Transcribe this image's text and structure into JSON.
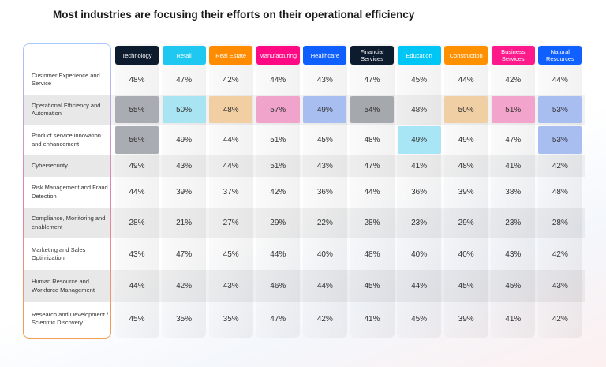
{
  "title": "Most industries are focusing their efforts on their operational efficiency",
  "chart_data": {
    "type": "table",
    "title": "Most industries are focusing their efforts on their operational efficiency",
    "columns": [
      {
        "label": "Technology",
        "color": "#0d1b2e",
        "highlight": "#a9adb3"
      },
      {
        "label": "Retail",
        "color": "#1ec8f0",
        "highlight": "#a9e4f2"
      },
      {
        "label": "Real Estate",
        "color": "#ff8c00",
        "highlight": "#f2cfa3"
      },
      {
        "label": "Manufacturing",
        "color": "#ff0a84",
        "highlight": "#f0a4cc"
      },
      {
        "label": "Healthcare",
        "color": "#0f5fff",
        "highlight": "#a8bdf0"
      },
      {
        "label": "Financial Services",
        "color": "#0d1b2e",
        "highlight": "#a5a8ad"
      },
      {
        "label": "Education",
        "color": "#00c6f5",
        "highlight": "#a9e6f5"
      },
      {
        "label": "Construction",
        "color": "#ff9100",
        "highlight": "#f0cfa5"
      },
      {
        "label": "Business Services",
        "color": "#ff1a8c",
        "highlight": "#f2a4cc"
      },
      {
        "label": "Natural Resources",
        "color": "#1060ff",
        "highlight": "#a8bdf0"
      }
    ],
    "rows": [
      {
        "label": "Customer Experience and Service",
        "values": [
          "48%",
          "47%",
          "42%",
          "44%",
          "43%",
          "47%",
          "45%",
          "44%",
          "42%",
          "44%"
        ],
        "highlighted": []
      },
      {
        "label": "Operational Efficiency and Automation",
        "values": [
          "55%",
          "50%",
          "48%",
          "57%",
          "49%",
          "54%",
          "48%",
          "50%",
          "51%",
          "53%"
        ],
        "highlighted": [
          0,
          1,
          2,
          3,
          4,
          5,
          7,
          8,
          9
        ]
      },
      {
        "label": "Product service innovation and enhancement",
        "values": [
          "56%",
          "49%",
          "44%",
          "51%",
          "45%",
          "48%",
          "49%",
          "49%",
          "47%",
          "53%"
        ],
        "highlighted": [
          0,
          6,
          9
        ]
      },
      {
        "label": "Cybersecurity",
        "values": [
          "49%",
          "43%",
          "44%",
          "51%",
          "43%",
          "47%",
          "41%",
          "48%",
          "41%",
          "42%"
        ],
        "highlighted": []
      },
      {
        "label": "Risk Management and Fraud Detection",
        "values": [
          "44%",
          "39%",
          "37%",
          "42%",
          "36%",
          "44%",
          "36%",
          "39%",
          "38%",
          "48%"
        ],
        "highlighted": []
      },
      {
        "label": "Compliance, Monitoring and enablement",
        "values": [
          "28%",
          "21%",
          "27%",
          "29%",
          "22%",
          "28%",
          "23%",
          "29%",
          "23%",
          "28%"
        ],
        "highlighted": []
      },
      {
        "label": "Marketing and Sales Optimization",
        "values": [
          "43%",
          "47%",
          "45%",
          "44%",
          "40%",
          "48%",
          "40%",
          "40%",
          "43%",
          "42%"
        ],
        "highlighted": []
      },
      {
        "label": "Human Resource and Workforce Management",
        "values": [
          "44%",
          "42%",
          "43%",
          "46%",
          "44%",
          "45%",
          "44%",
          "45%",
          "45%",
          "43%"
        ],
        "highlighted": []
      },
      {
        "label": "Research and Development / Scientific Discovery",
        "values": [
          "45%",
          "35%",
          "35%",
          "47%",
          "42%",
          "41%",
          "45%",
          "39%",
          "41%",
          "42%"
        ],
        "highlighted": []
      }
    ]
  }
}
